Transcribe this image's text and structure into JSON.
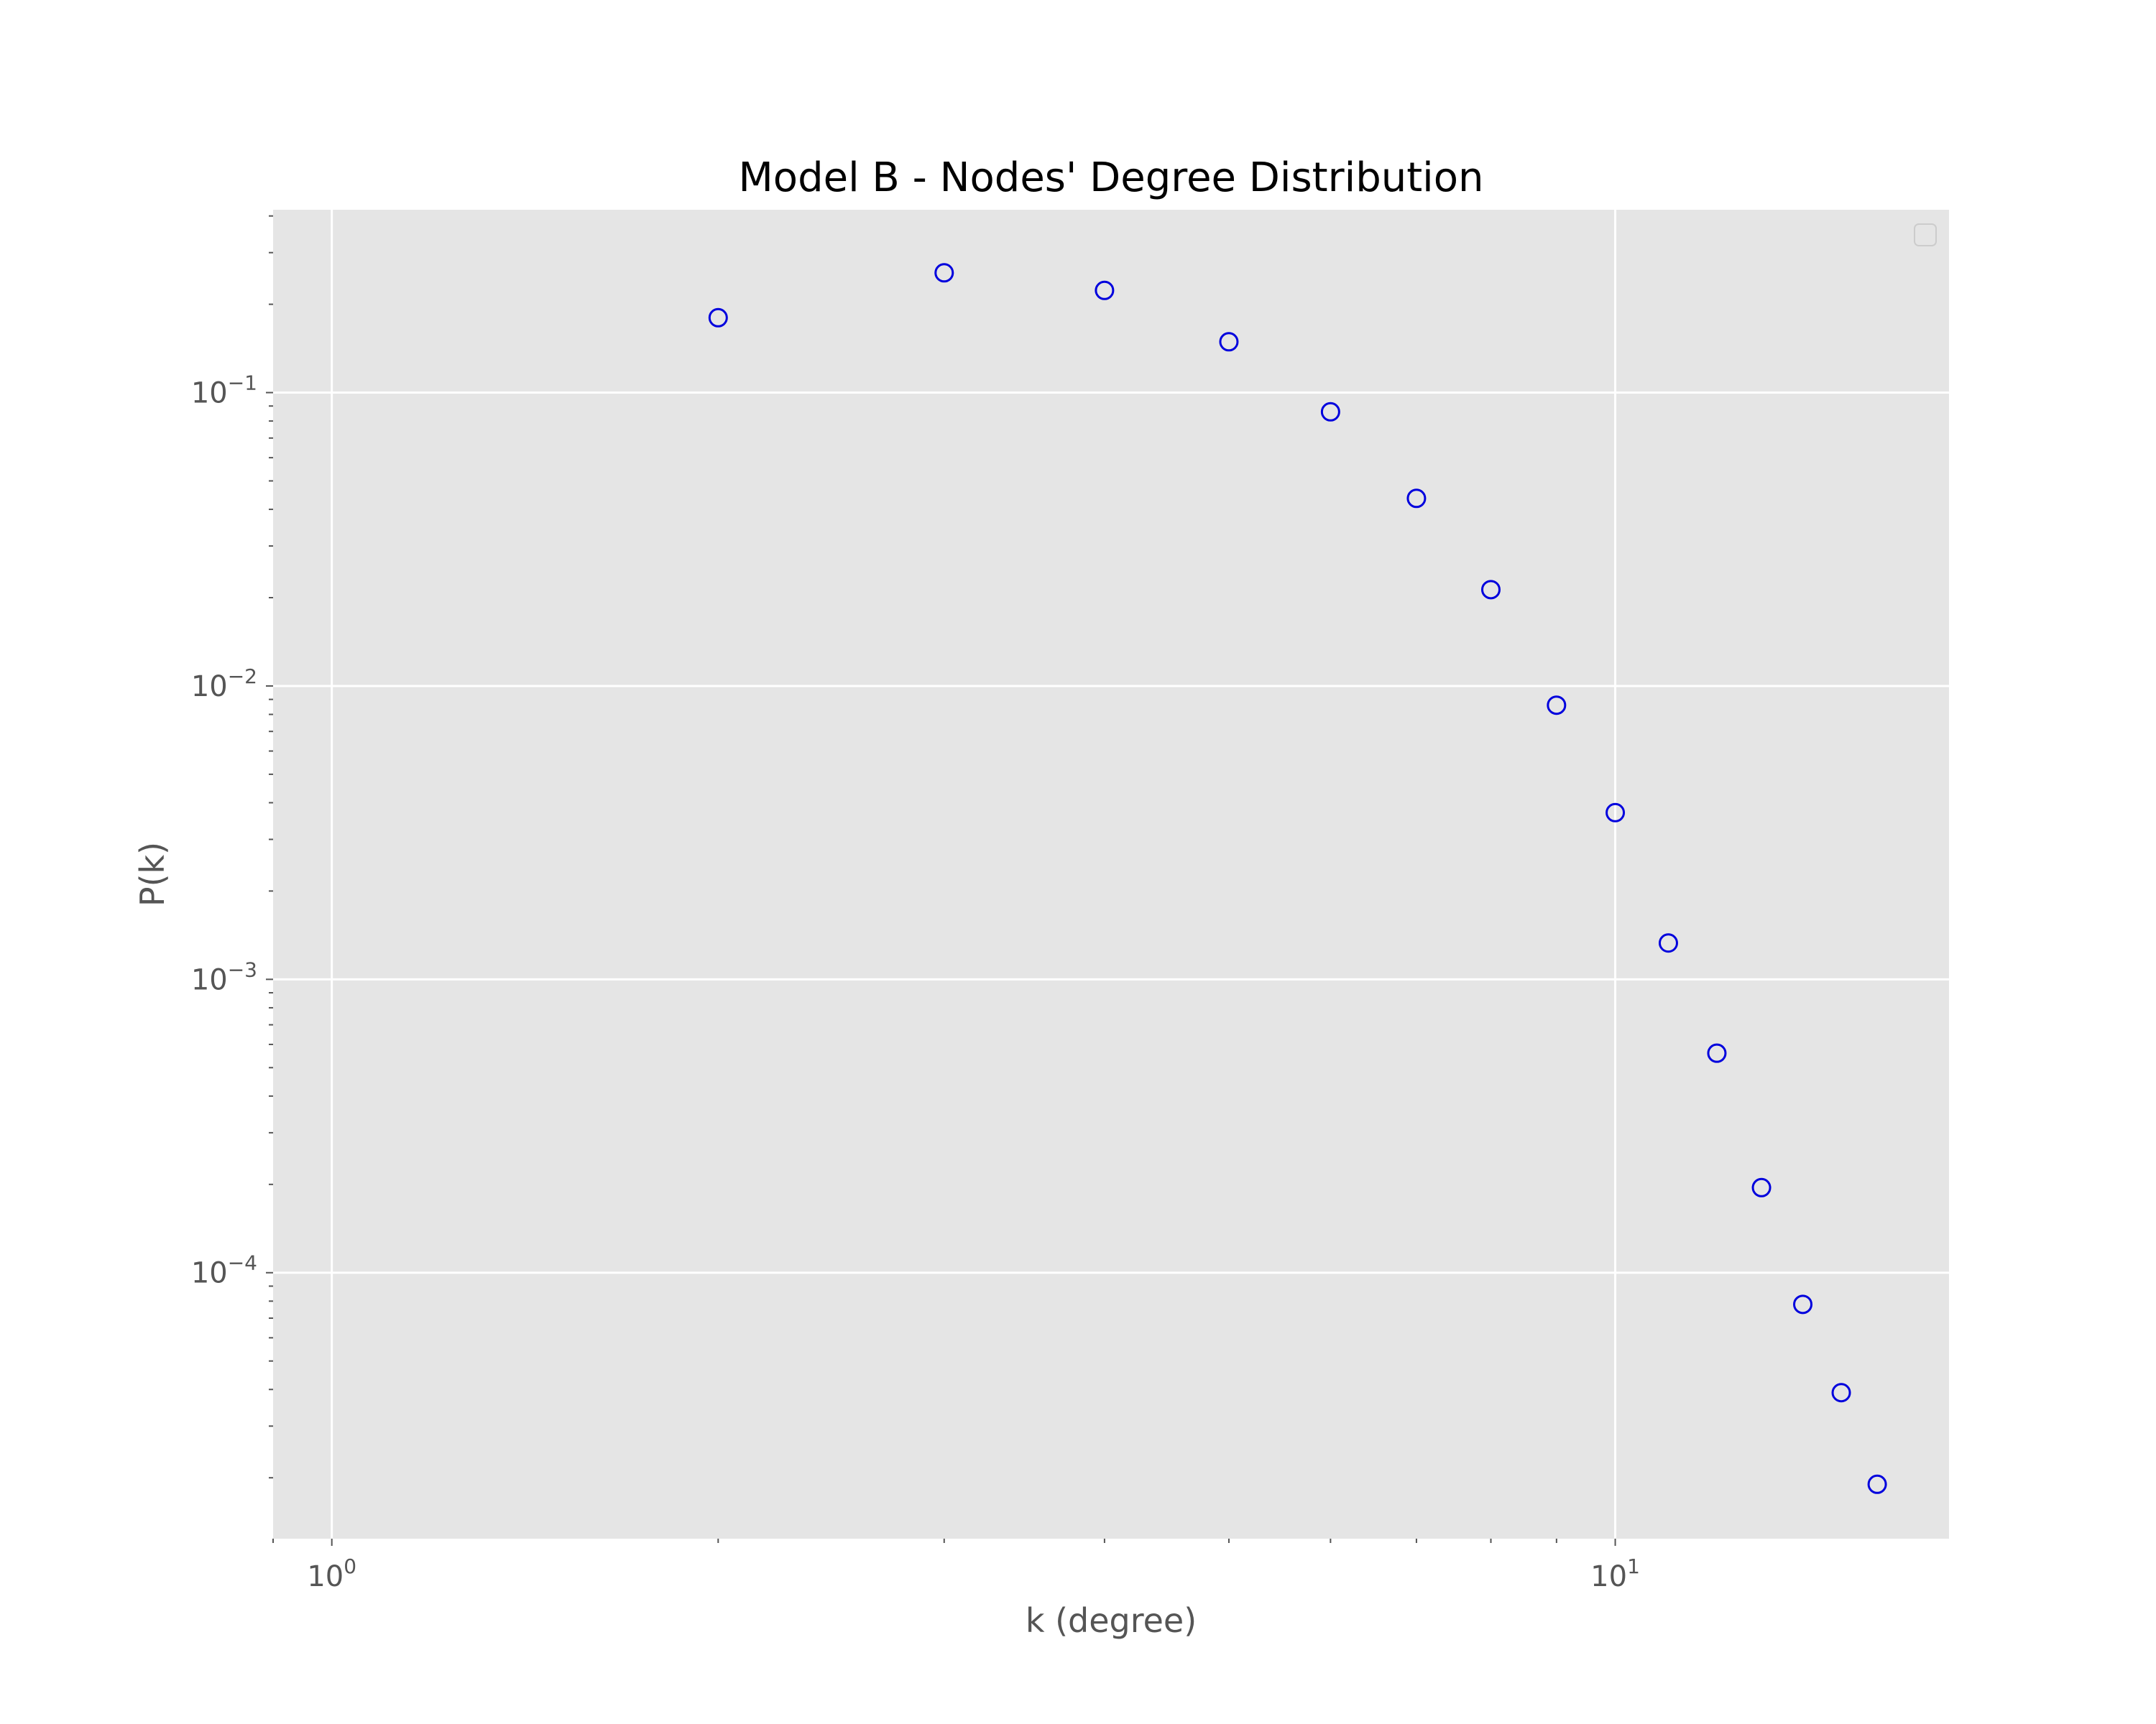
{
  "chart_data": {
    "type": "scatter",
    "title": "Model B - Nodes' Degree Distribution",
    "xlabel": "k (degree)",
    "ylabel": "P(k)",
    "x_scale": "log",
    "y_scale": "log",
    "xlim": [
      0.9,
      18.2
    ],
    "ylim": [
      1.24e-05,
      0.42
    ],
    "x_ticks": [
      {
        "value": 1,
        "base": "10",
        "exp": "0"
      },
      {
        "value": 10,
        "base": "10",
        "exp": "1"
      }
    ],
    "y_ticks": [
      {
        "value": 0.1,
        "base": "10",
        "exp": "−1"
      },
      {
        "value": 0.01,
        "base": "10",
        "exp": "−2"
      },
      {
        "value": 0.001,
        "base": "10",
        "exp": "−3"
      },
      {
        "value": 0.0001,
        "base": "10",
        "exp": "−4"
      }
    ],
    "grid": true,
    "legend": "top-right, empty",
    "marker": "open circle",
    "marker_color": "#0000dd",
    "series": [
      {
        "x": [
          2,
          3,
          4,
          5,
          6,
          7,
          8,
          9,
          10,
          11,
          12,
          13,
          14,
          15,
          16
        ],
        "y": [
          0.18,
          0.256,
          0.223,
          0.149,
          0.086,
          0.0436,
          0.0213,
          0.0086,
          0.0037,
          0.00133,
          0.00056,
          0.000195,
          7.8e-05,
          3.9e-05,
          1.9e-05
        ]
      }
    ]
  },
  "colors": {
    "plot_background": "#e5e5e5",
    "grid": "#ffffff",
    "tick_text": "#555555"
  }
}
